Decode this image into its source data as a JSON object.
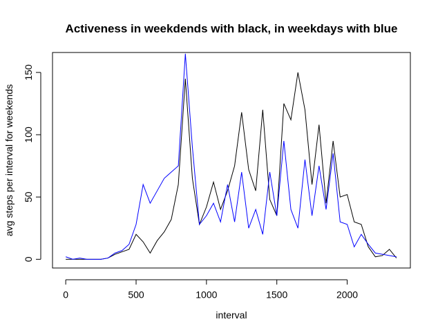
{
  "chart_data": {
    "type": "line",
    "title": "Activeness in weekdends with black, in weekdays with blue",
    "x_label": "interval",
    "y_label": "avg steps per interval for weekends",
    "x": [
      0,
      50,
      100,
      150,
      200,
      250,
      300,
      350,
      400,
      450,
      500,
      550,
      600,
      650,
      700,
      750,
      800,
      850,
      900,
      950,
      1000,
      1050,
      1100,
      1150,
      1200,
      1250,
      1300,
      1350,
      1400,
      1450,
      1500,
      1550,
      1600,
      1650,
      1700,
      1750,
      1800,
      1850,
      1900,
      1950,
      2000,
      2050,
      2100,
      2150,
      2200,
      2250,
      2300,
      2350
    ],
    "series": [
      {
        "color": "#000000",
        "values": [
          0,
          0,
          0,
          0,
          0,
          0,
          1,
          4,
          6,
          8,
          20,
          14,
          5,
          15,
          22,
          32,
          60,
          145,
          65,
          28,
          42,
          62,
          40,
          55,
          75,
          118,
          72,
          55,
          120,
          48,
          35,
          125,
          112,
          150,
          120,
          60,
          108,
          45,
          95,
          50,
          52,
          30,
          28,
          10,
          2,
          3,
          8,
          1
        ]
      },
      {
        "color": "#0000ff",
        "values": [
          2,
          0,
          1,
          0,
          0,
          0,
          1,
          5,
          7,
          12,
          28,
          60,
          45,
          55,
          65,
          70,
          75,
          165,
          90,
          28,
          35,
          45,
          30,
          60,
          30,
          70,
          25,
          40,
          20,
          70,
          35,
          95,
          40,
          25,
          80,
          35,
          75,
          40,
          85,
          30,
          28,
          10,
          20,
          12,
          5,
          4,
          3,
          2
        ]
      }
    ],
    "xlim": [
      -94,
      2449
    ],
    "ylim": [
      -7,
      166
    ],
    "xticks": [
      0,
      500,
      1000,
      1500,
      2000
    ],
    "yticks": [
      0,
      50,
      100,
      150
    ]
  }
}
